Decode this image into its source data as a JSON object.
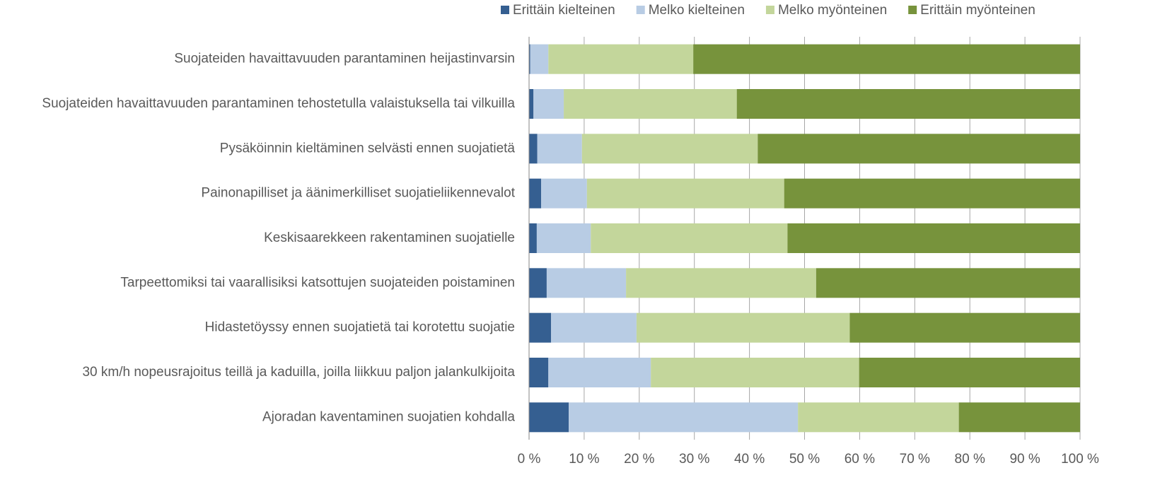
{
  "chart_data": {
    "type": "stacked_barh",
    "categories": [
      "Suojateiden havaittavuuden parantaminen heijastinvarsin",
      "Suojateiden havaittavuuden parantaminen tehostetulla valaistuksella tai vilkuilla",
      "Pysäköinnin kieltäminen selvästi ennen suojatietä",
      "Painonapilliset ja äänimerkilliset suojatieliikennevalot",
      "Keskisaarekkeen rakentaminen suojatielle",
      "Tarpeettomiksi tai vaarallisiksi katsottujen suojateiden poistaminen",
      "Hidastetöyssy ennen suojatietä tai korotettu suojatie",
      "30 km/h nopeusrajoitus teillä ja kaduilla, joilla liikkuu paljon jalankulkijoita",
      "Ajoradan kaventaminen suojatien kohdalla"
    ],
    "series": [
      {
        "name": "Erittäin kielteinen",
        "color": "#355f91",
        "values": [
          0.2,
          0.8,
          1.5,
          2.2,
          1.4,
          3.2,
          4.0,
          3.5,
          7.2
        ]
      },
      {
        "name": "Melko kielteinen",
        "color": "#b8cce4",
        "values": [
          3.3,
          5.5,
          8.1,
          8.3,
          9.8,
          14.4,
          15.5,
          18.6,
          41.6
        ]
      },
      {
        "name": "Melko myönteinen",
        "color": "#c3d69b",
        "values": [
          26.3,
          31.4,
          31.9,
          35.8,
          35.7,
          34.5,
          38.7,
          37.8,
          29.2
        ]
      },
      {
        "name": "Erittäin myönteinen",
        "color": "#77933c",
        "values": [
          70.2,
          62.3,
          58.5,
          53.7,
          53.1,
          47.9,
          41.8,
          40.1,
          22.0
        ]
      }
    ],
    "xlim": [
      0,
      100
    ],
    "xticks": [
      {
        "value": 0,
        "label": "0 %"
      },
      {
        "value": 10,
        "label": "10 %"
      },
      {
        "value": 20,
        "label": "20 %"
      },
      {
        "value": 30,
        "label": "30 %"
      },
      {
        "value": 40,
        "label": "40 %"
      },
      {
        "value": 50,
        "label": "50 %"
      },
      {
        "value": 60,
        "label": "60 %"
      },
      {
        "value": 70,
        "label": "70 %"
      },
      {
        "value": 80,
        "label": "80 %"
      },
      {
        "value": 90,
        "label": "90 %"
      },
      {
        "value": 100,
        "label": "100 %"
      }
    ],
    "grid": true,
    "legend": "top"
  }
}
